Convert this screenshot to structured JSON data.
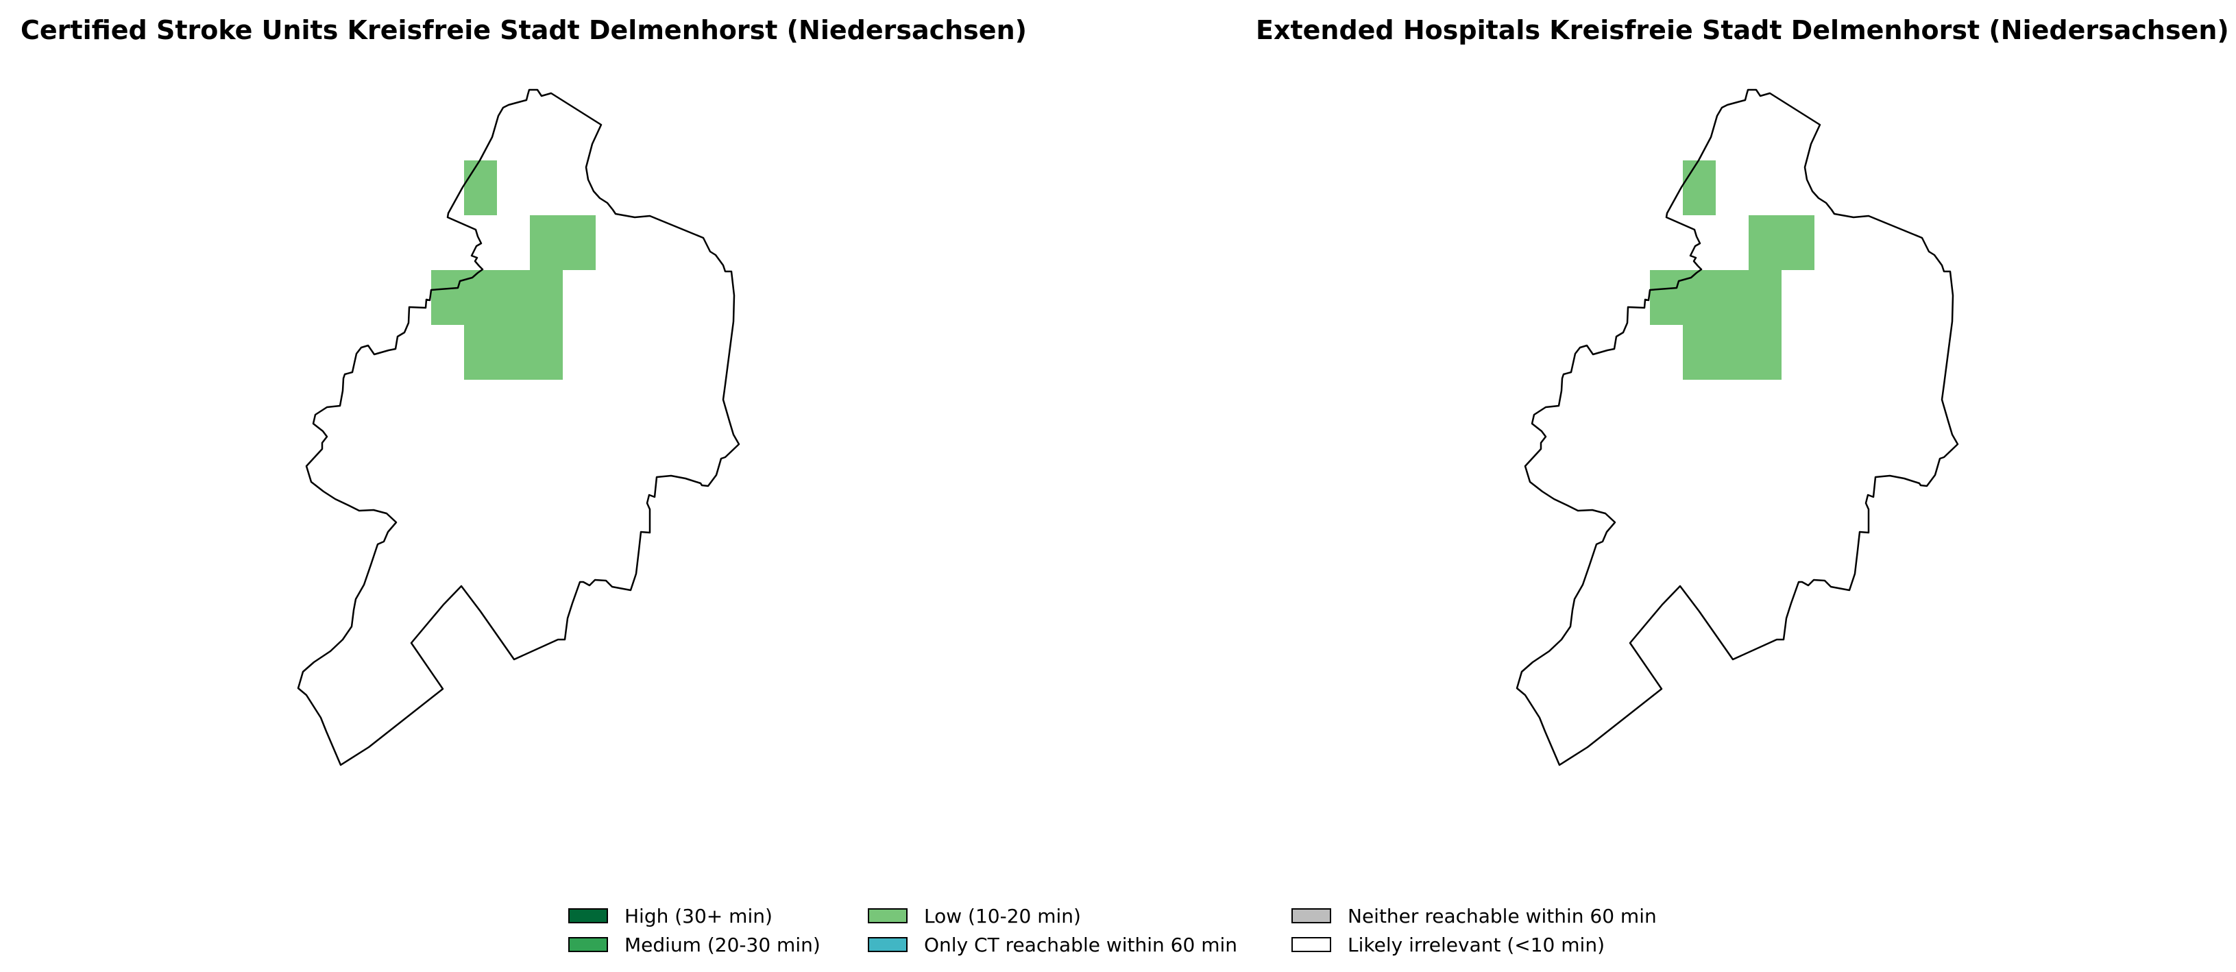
{
  "maps": [
    {
      "title": "Certified Stroke Units Kreisfreie Stadt Delmenhorst (Niedersachsen)",
      "district_border_color": "#000000",
      "cells": [
        {
          "category": "low",
          "color": "#78c679"
        },
        {
          "category": "low",
          "color": "#78c679"
        },
        {
          "category": "low",
          "color": "#78c679"
        },
        {
          "category": "low",
          "color": "#78c679"
        }
      ]
    },
    {
      "title": "Extended Hospitals Kreisfreie Stadt Delmenhorst (Niedersachsen)",
      "district_border_color": "#000000",
      "cells": [
        {
          "category": "low",
          "color": "#78c679"
        },
        {
          "category": "low",
          "color": "#78c679"
        },
        {
          "category": "low",
          "color": "#78c679"
        },
        {
          "category": "low",
          "color": "#78c679"
        }
      ]
    }
  ],
  "legend": {
    "items": [
      {
        "label": "High (30+ min)",
        "color": "#006837"
      },
      {
        "label": "Medium (20-30 min)",
        "color": "#31a354"
      },
      {
        "label": "Low (10-20 min)",
        "color": "#78c679"
      },
      {
        "label": "Only CT reachable within 60 min",
        "color": "#41b6c4"
      },
      {
        "label": "Neither reachable within 60 min",
        "color": "#bdbdbd"
      },
      {
        "label": "Likely irrelevant (<10 min)",
        "color": "#ffffff"
      }
    ]
  }
}
